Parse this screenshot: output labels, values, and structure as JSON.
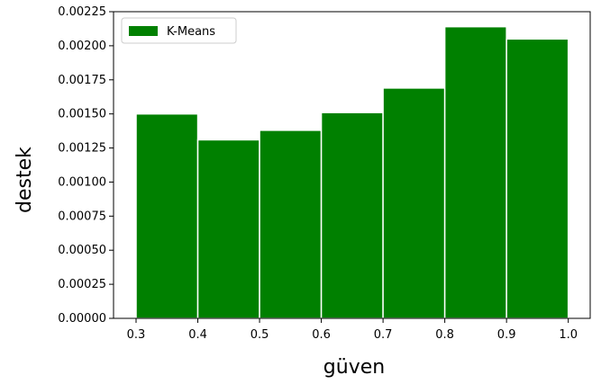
{
  "chart_data": {
    "type": "bar",
    "xlabel": "güven",
    "ylabel": "destek",
    "xlim": [
      0.3,
      1.0
    ],
    "ylim": [
      0.0,
      0.00225
    ],
    "bins": [
      {
        "x0": 0.3,
        "x1": 0.4,
        "value": 0.0015
      },
      {
        "x0": 0.4,
        "x1": 0.5,
        "value": 0.00131
      },
      {
        "x0": 0.5,
        "x1": 0.6,
        "value": 0.00138
      },
      {
        "x0": 0.6,
        "x1": 0.7,
        "value": 0.00151
      },
      {
        "x0": 0.7,
        "x1": 0.8,
        "value": 0.00169
      },
      {
        "x0": 0.8,
        "x1": 0.9,
        "value": 0.00214
      },
      {
        "x0": 0.9,
        "x1": 1.0,
        "value": 0.00205
      }
    ],
    "xticks": [
      "0.3",
      "0.4",
      "0.5",
      "0.6",
      "0.7",
      "0.8",
      "0.9",
      "1.0"
    ],
    "yticks": [
      "0.00000",
      "0.00025",
      "0.00050",
      "0.00075",
      "0.00100",
      "0.00125",
      "0.00150",
      "0.00175",
      "0.00200",
      "0.00225"
    ],
    "legend": {
      "label": "K-Means",
      "position": "upper-left"
    },
    "grid": false,
    "bar_color": "#008000",
    "edge_color": "#ffffff"
  }
}
